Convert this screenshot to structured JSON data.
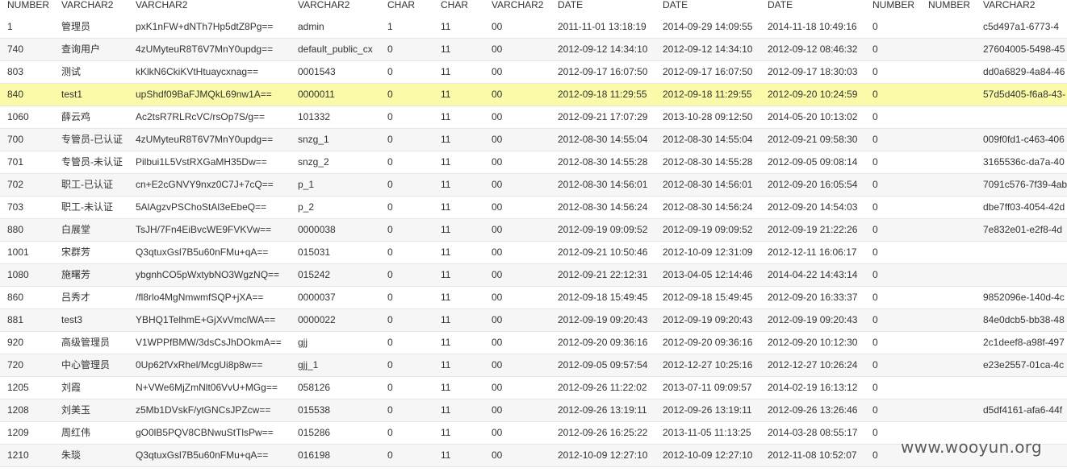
{
  "table": {
    "columns": [
      "NUMBER",
      "VARCHAR2",
      "VARCHAR2",
      "VARCHAR2",
      "CHAR",
      "CHAR",
      "VARCHAR2",
      "DATE",
      "DATE",
      "DATE",
      "NUMBER",
      "NUMBER",
      "VARCHAR2"
    ],
    "rows": [
      [
        "1",
        "管理员",
        "pxK1nFW+dNTh7Hp5dtZ8Pg==",
        "admin",
        "1",
        "11",
        "00",
        "2011-11-01 13:18:19",
        "2014-09-29 14:09:55",
        "2014-11-18 10:49:16",
        "0",
        "",
        "c5d497a1-6773-4"
      ],
      [
        "740",
        "查询用户",
        "4zUMyteuR8T6V7MnY0updg==",
        "default_public_cx",
        "0",
        "11",
        "00",
        "2012-09-12 14:34:10",
        "2012-09-12 14:34:10",
        "2012-09-12 08:46:32",
        "0",
        "",
        "27604005-5498-45"
      ],
      [
        "803",
        "测试",
        "kKlkN6CkiKVtHtuaycxnag==",
        "0001543",
        "0",
        "11",
        "00",
        "2012-09-17 16:07:50",
        "2012-09-17 16:07:50",
        "2012-09-17 18:30:03",
        "0",
        "",
        "dd0a6829-4a84-46"
      ],
      [
        "840",
        "test1",
        "upShdf09BaFJMQkL69nw1A==",
        "0000011",
        "0",
        "11",
        "00",
        "2012-09-18 11:29:55",
        "2012-09-18 11:29:55",
        "2012-09-20 10:24:59",
        "0",
        "",
        "57d5d405-f6a8-43-"
      ],
      [
        "1060",
        "薛云鸡",
        "Ac2tsR7RLRcVC/rsOp7S/g==",
        "101332",
        "0",
        "11",
        "00",
        "2012-09-21 17:07:29",
        "2013-10-28 09:12:50",
        "2014-05-20 10:13:02",
        "0",
        "",
        ""
      ],
      [
        "700",
        "专管员-已认证",
        "4zUMyteuR8T6V7MnY0updg==",
        "snzg_1",
        "0",
        "11",
        "00",
        "2012-08-30 14:55:04",
        "2012-08-30 14:55:04",
        "2012-09-21 09:58:30",
        "0",
        "",
        "009f0fd1-c463-406"
      ],
      [
        "701",
        "专管员-未认证",
        "Pilbui1L5VstRXGaMH35Dw==",
        "snzg_2",
        "0",
        "11",
        "00",
        "2012-08-30 14:55:28",
        "2012-08-30 14:55:28",
        "2012-09-05 09:08:14",
        "0",
        "",
        "3165536c-da7a-40"
      ],
      [
        "702",
        "职工-已认证",
        "cn+E2cGNVY9nxz0C7J+7cQ==",
        "p_1",
        "0",
        "11",
        "00",
        "2012-08-30 14:56:01",
        "2012-08-30 14:56:01",
        "2012-09-20 16:05:54",
        "0",
        "",
        "7091c576-7f39-4ab"
      ],
      [
        "703",
        "职工-未认证",
        "5AlAgzvPSChoStAl3eEbeQ==",
        "p_2",
        "0",
        "11",
        "00",
        "2012-08-30 14:56:24",
        "2012-08-30 14:56:24",
        "2012-09-20 14:54:03",
        "0",
        "",
        "dbe7ff03-4054-42d"
      ],
      [
        "880",
        "白展堂",
        "TsJH/7Fn4EiBvcWE9FVKVw==",
        "0000038",
        "0",
        "11",
        "00",
        "2012-09-19 09:09:52",
        "2012-09-19 09:09:52",
        "2012-09-19 21:22:26",
        "0",
        "",
        "7e832e01-e2f8-4d"
      ],
      [
        "1001",
        "宋群芳",
        "Q3qtuxGsl7B5u60nFMu+qA==",
        "015031",
        "0",
        "11",
        "00",
        "2012-09-21 10:50:46",
        "2012-10-09 12:31:09",
        "2012-12-11 16:06:17",
        "0",
        "",
        ""
      ],
      [
        "1080",
        "施曙芳",
        "ybgnhCO5pWxtybNO3WgzNQ==",
        "015242",
        "0",
        "11",
        "00",
        "2012-09-21 22:12:31",
        "2013-04-05 12:14:46",
        "2014-04-22 14:43:14",
        "0",
        "",
        ""
      ],
      [
        "860",
        "吕秀才",
        "/fl8rlo4MgNmwmfSQP+jXA==",
        "0000037",
        "0",
        "11",
        "00",
        "2012-09-18 15:49:45",
        "2012-09-18 15:49:45",
        "2012-09-20 16:33:37",
        "0",
        "",
        "9852096e-140d-4c"
      ],
      [
        "881",
        "test3",
        "YBHQ1TelhmE+GjXvVmclWA==",
        "0000022",
        "0",
        "11",
        "00",
        "2012-09-19 09:20:43",
        "2012-09-19 09:20:43",
        "2012-09-19 09:20:43",
        "0",
        "",
        "84e0dcb5-bb38-48"
      ],
      [
        "920",
        "高级管理员",
        "V1WPPfBMW/3dsCsJhDOkmA==",
        "gjj",
        "0",
        "11",
        "00",
        "2012-09-20 09:36:16",
        "2012-09-20 09:36:16",
        "2012-09-20 10:12:30",
        "0",
        "",
        "2c1deef8-a98f-497"
      ],
      [
        "720",
        "中心管理员",
        "0Up62fVxRhel/McgUi8p8w==",
        "gjj_1",
        "0",
        "11",
        "00",
        "2012-09-05 09:57:54",
        "2012-12-27 10:25:16",
        "2012-12-27 10:26:24",
        "0",
        "",
        "e23e2557-01ca-4c"
      ],
      [
        "1205",
        "刘霞",
        "N+VWe6MjZmNlt06VvU+MGg==",
        "058126",
        "0",
        "11",
        "00",
        "2012-09-26 11:22:02",
        "2013-07-11 09:09:57",
        "2014-02-19 16:13:12",
        "0",
        "",
        ""
      ],
      [
        "1208",
        "刘美玉",
        "z5Mb1DVskF/ytGNCsJPZcw==",
        "015538",
        "0",
        "11",
        "00",
        "2012-09-26 13:19:11",
        "2012-09-26 13:19:11",
        "2012-09-26 13:26:46",
        "0",
        "",
        "d5df4161-afa6-44f"
      ],
      [
        "1209",
        "周红伟",
        "gO0lB5PQV8CBNwuStTlsPw==",
        "015286",
        "0",
        "11",
        "00",
        "2012-09-26 16:25:22",
        "2013-11-05 11:13:25",
        "2014-03-28 08:55:17",
        "0",
        "",
        ""
      ],
      [
        "1210",
        "朱琰",
        "Q3qtuxGsl7B5u60nFMu+qA==",
        "016198",
        "0",
        "11",
        "00",
        "2012-10-09 12:27:10",
        "2012-10-09 12:27:10",
        "2012-11-08 10:52:07",
        "0",
        "",
        ""
      ]
    ],
    "selected_row": 3,
    "selected_color": "#fafaa8"
  },
  "watermark": {
    "text": "www.wooyun.org"
  }
}
